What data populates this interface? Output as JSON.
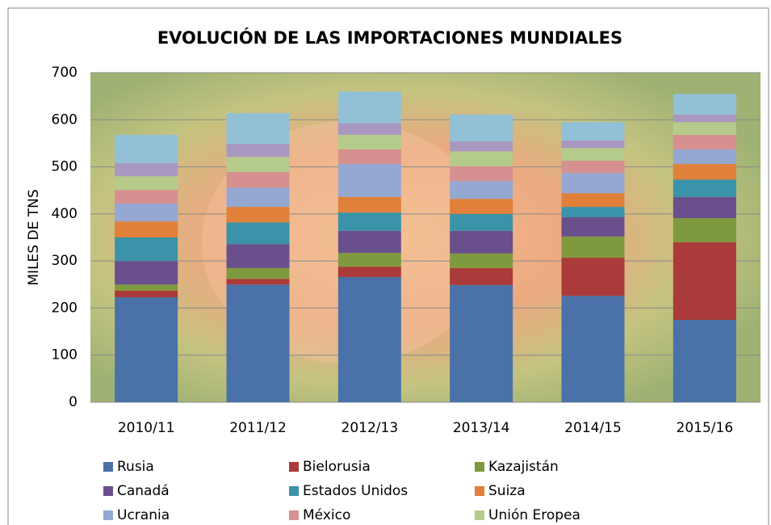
{
  "chart_data": {
    "type": "stacked_bar",
    "title": "EVOLUCIÓN DE LAS IMPORTACIONES MUNDIALES",
    "y_label": "MILES DE TNS",
    "categories": [
      "2010/11",
      "2011/12",
      "2012/13",
      "2013/14",
      "2014/15",
      "2015/16"
    ],
    "ylim": [
      0,
      700
    ],
    "yticks": [
      0,
      100,
      200,
      300,
      400,
      500,
      600,
      700
    ],
    "grid": true,
    "series": [
      {
        "name": "Rusia",
        "color": "#4a72a8",
        "values": [
          223,
          250,
          266,
          249,
          226,
          175
        ]
      },
      {
        "name": "Bielorusia",
        "color": "#ab3a3a",
        "values": [
          14,
          12,
          22,
          36,
          81,
          165
        ]
      },
      {
        "name": "Kazajistán",
        "color": "#7f9a3e",
        "values": [
          13,
          23,
          29,
          31,
          45,
          51
        ]
      },
      {
        "name": "Canadá",
        "color": "#6a4f8d",
        "values": [
          50,
          51,
          47,
          48,
          41,
          45
        ]
      },
      {
        "name": "Estados Unidos",
        "color": "#3a93a8",
        "values": [
          50,
          46,
          39,
          36,
          22,
          37
        ]
      },
      {
        "name": "Suiza",
        "color": "#e0803a",
        "values": [
          34,
          33,
          33,
          32,
          29,
          33
        ]
      },
      {
        "name": "Ucrania",
        "color": "#95a8d2",
        "values": [
          38,
          41,
          70,
          38,
          43,
          31
        ]
      },
      {
        "name": "México",
        "color": "#d69090",
        "values": [
          29,
          33,
          31,
          31,
          26,
          31
        ]
      },
      {
        "name": "Unión Eropea",
        "color": "#b5cb8c",
        "values": [
          29,
          32,
          31,
          32,
          27,
          27
        ]
      },
      {
        "color": "#a898c0",
        "values": [
          28,
          28,
          25,
          21,
          16,
          16
        ]
      },
      {
        "color": "#92c0d6",
        "values": [
          60,
          65,
          67,
          57,
          39,
          44
        ]
      }
    ]
  }
}
